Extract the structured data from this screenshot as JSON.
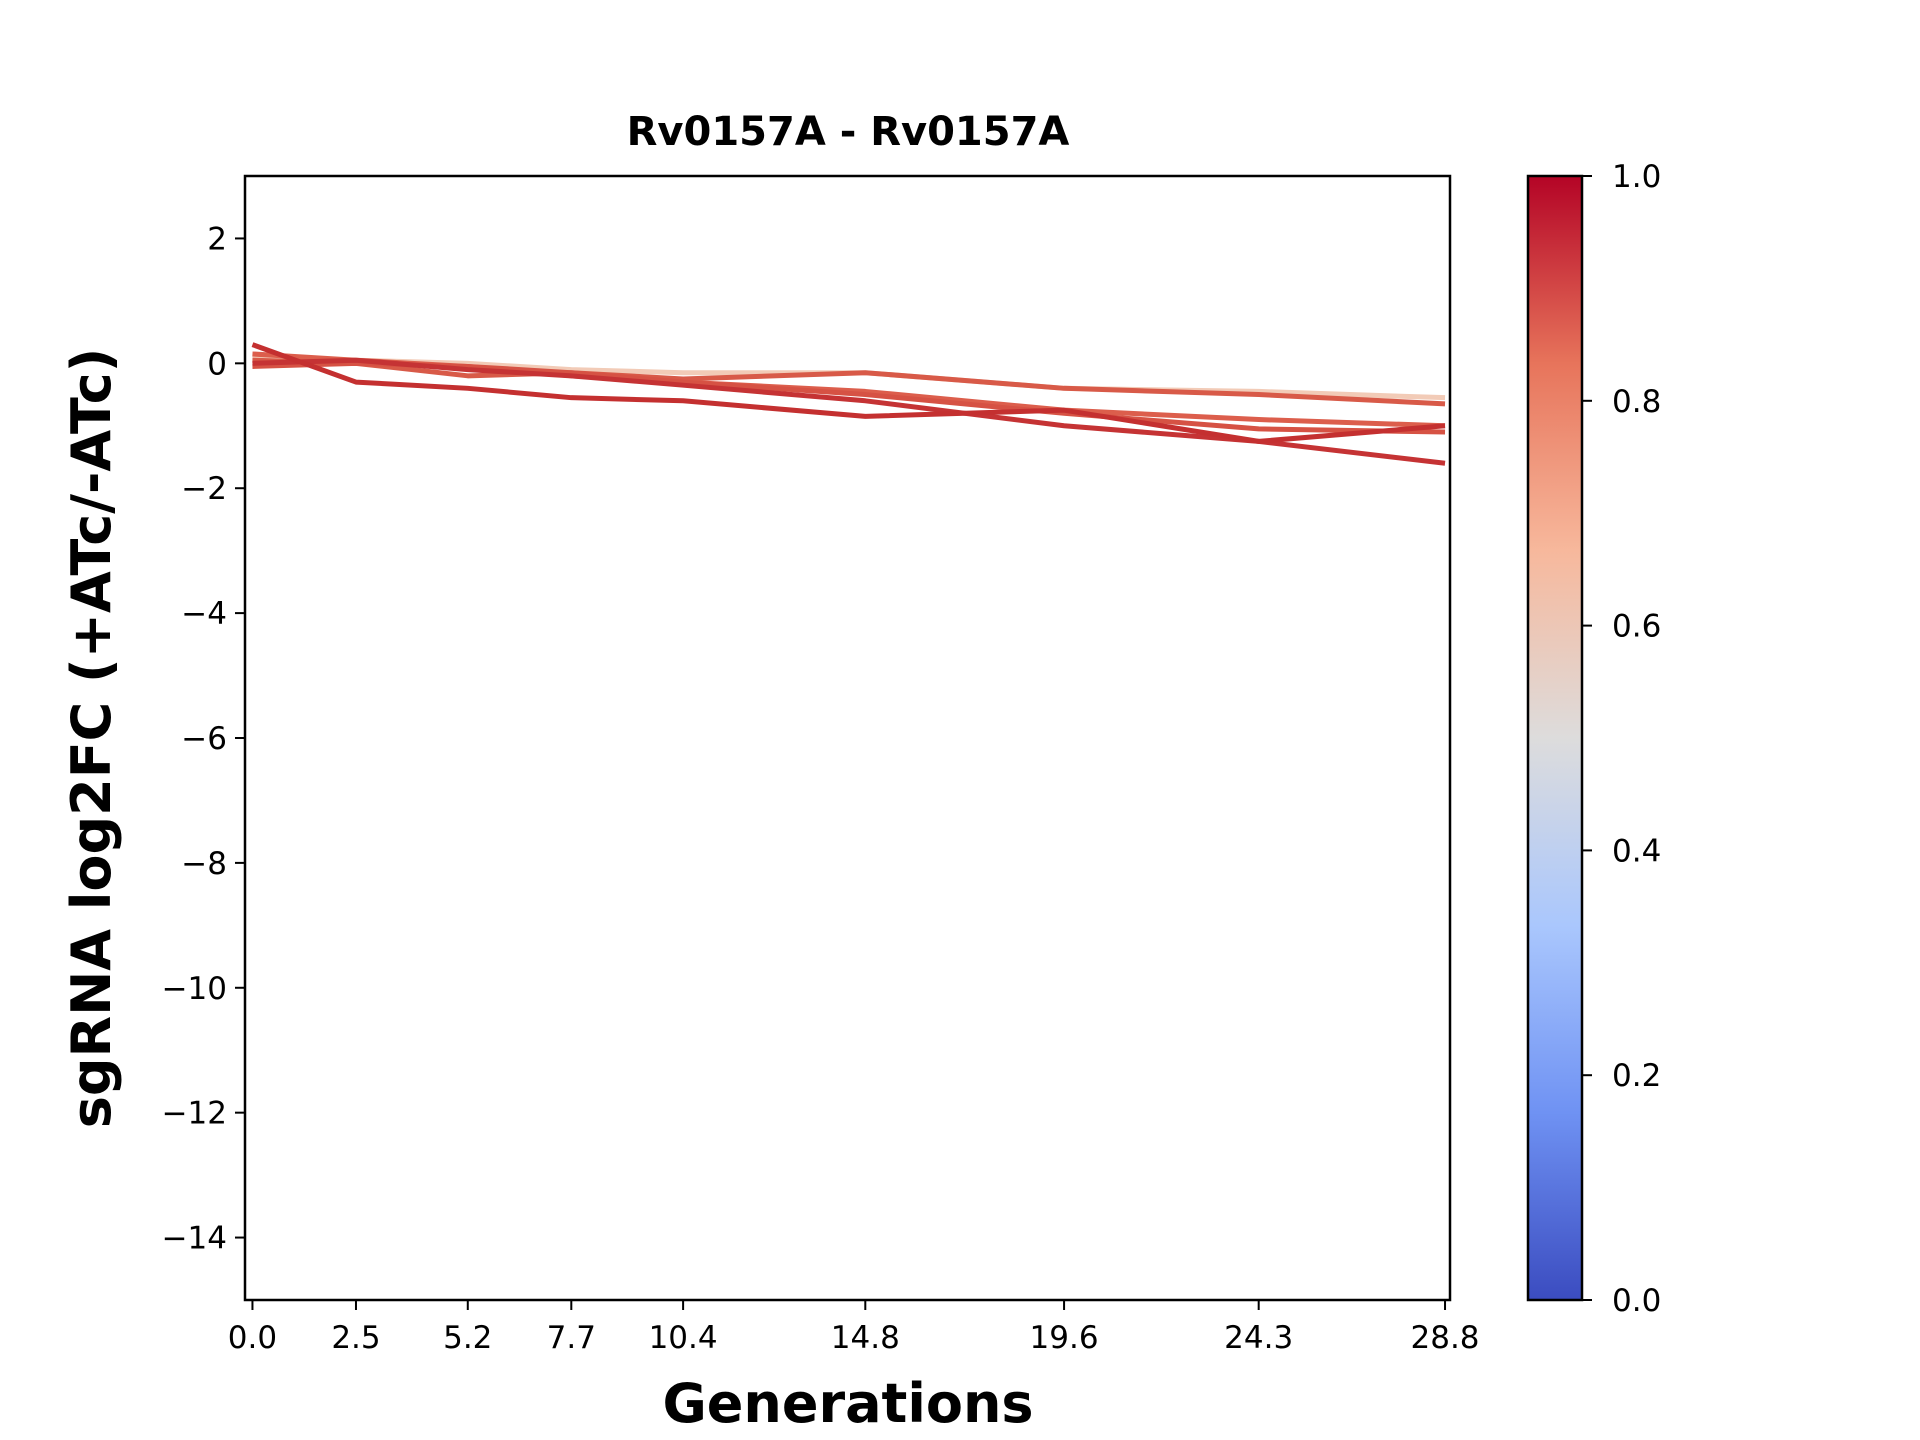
{
  "chart_data": {
    "type": "line",
    "title": "Rv0157A - Rv0157A",
    "xlabel": "Generations",
    "ylabel": "sgRNA log2FC (+ATc/-ATc)",
    "x": [
      0.0,
      2.5,
      5.2,
      7.7,
      10.4,
      14.8,
      19.6,
      24.3,
      28.8
    ],
    "x_tick_labels": [
      "0.0",
      "2.5",
      "5.2",
      "7.7",
      "10.4",
      "14.8",
      "19.6",
      "24.3",
      "28.8"
    ],
    "y_ticks": [
      2,
      0,
      -2,
      -4,
      -6,
      -8,
      -10,
      -12,
      -14
    ],
    "y_tick_labels": [
      "2",
      "0",
      "−2",
      "−4",
      "−6",
      "−8",
      "−10",
      "−12",
      "−14"
    ],
    "xlim": [
      -0.18,
      28.92
    ],
    "ylim": [
      -15,
      3
    ],
    "grid": false,
    "series": [
      {
        "color": "#f2cbb7",
        "values": [
          0.1,
          0.05,
          0.0,
          -0.1,
          -0.15,
          -0.15,
          -0.4,
          -0.45,
          -0.55
        ]
      },
      {
        "color": "#d85a48",
        "values": [
          0.05,
          0.0,
          -0.2,
          -0.15,
          -0.25,
          -0.15,
          -0.4,
          -0.5,
          -0.65
        ]
      },
      {
        "color": "#dc5e4c",
        "values": [
          0.15,
          0.05,
          -0.05,
          -0.2,
          -0.3,
          -0.45,
          -0.75,
          -0.9,
          -1.0
        ]
      },
      {
        "color": "#d65244",
        "values": [
          -0.05,
          0.0,
          -0.05,
          -0.15,
          -0.3,
          -0.5,
          -0.8,
          -1.05,
          -1.1
        ]
      },
      {
        "color": "#c53334",
        "values": [
          0.0,
          0.05,
          -0.1,
          -0.2,
          -0.35,
          -0.6,
          -1.0,
          -1.25,
          -1.6
        ]
      },
      {
        "color": "#c43030",
        "values": [
          0.3,
          -0.3,
          -0.4,
          -0.55,
          -0.6,
          -0.85,
          -0.75,
          -1.25,
          -1.0
        ]
      }
    ],
    "colorbar": {
      "colormap": "coolwarm",
      "range": [
        0.0,
        1.0
      ],
      "ticks": [
        0.0,
        0.2,
        0.4,
        0.6,
        0.8,
        1.0
      ],
      "tick_labels": [
        "0.0",
        "0.2",
        "0.4",
        "0.6",
        "0.8",
        "1.0"
      ],
      "colors": [
        "#3b4cc0",
        "#6f92f3",
        "#aac7fd",
        "#dddcdc",
        "#f7b89c",
        "#e7745b",
        "#b40426"
      ]
    }
  }
}
